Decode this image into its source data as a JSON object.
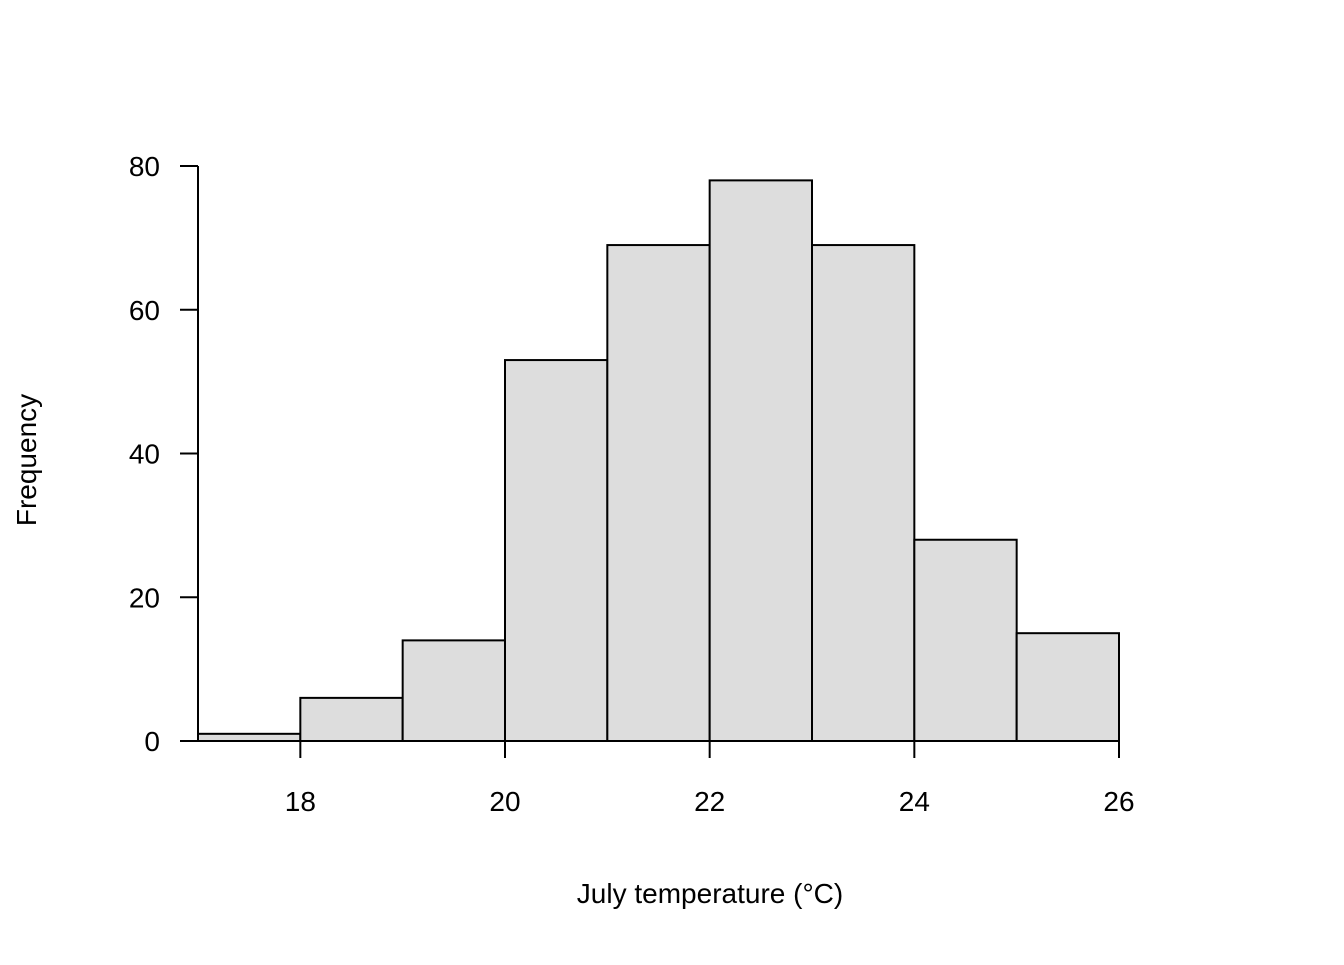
{
  "chart_data": {
    "type": "bar",
    "subtype": "histogram",
    "bins": [
      {
        "start": 17,
        "end": 18,
        "value": 1
      },
      {
        "start": 18,
        "end": 19,
        "value": 6
      },
      {
        "start": 19,
        "end": 20,
        "value": 14
      },
      {
        "start": 20,
        "end": 21,
        "value": 53
      },
      {
        "start": 21,
        "end": 22,
        "value": 69
      },
      {
        "start": 22,
        "end": 23,
        "value": 78
      },
      {
        "start": 23,
        "end": 24,
        "value": 69
      },
      {
        "start": 24,
        "end": 25,
        "value": 28
      },
      {
        "start": 25,
        "end": 26,
        "value": 15
      }
    ],
    "xlabel": "July temperature (°C)",
    "ylabel": "Frequency",
    "xlim": [
      17,
      26
    ],
    "ylim": [
      0,
      80
    ],
    "xticks": [
      18,
      20,
      22,
      24,
      26
    ],
    "yticks": [
      0,
      20,
      40,
      60,
      80
    ],
    "bar_color": "#dddddd",
    "edge_color": "#000000",
    "grid": false
  }
}
